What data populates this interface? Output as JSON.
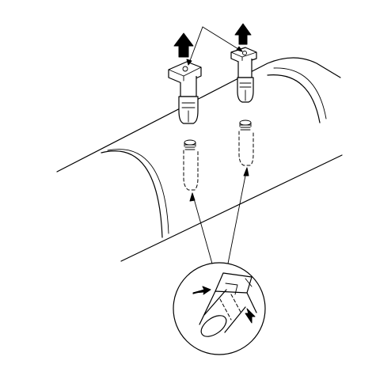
{
  "figure": {
    "background": "#ffffff",
    "line_color": "#000000",
    "parts": [
      "tube",
      "clip-left",
      "clip-right",
      "mounting-hole-left",
      "mounting-hole-right",
      "detail-magnifier"
    ],
    "arrows": [
      "removal-arrow-left",
      "removal-arrow-right",
      "pointer-arrow-left",
      "pointer-arrow-right"
    ]
  }
}
